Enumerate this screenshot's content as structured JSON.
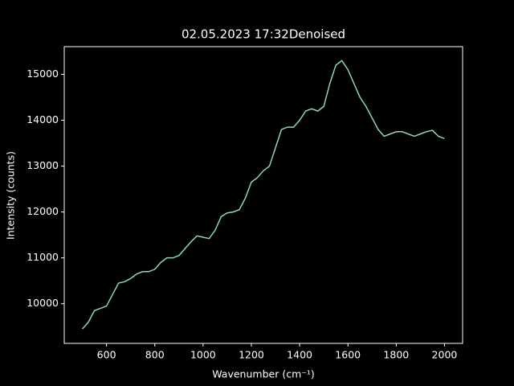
{
  "chart_data": {
    "type": "line",
    "title": "02.05.2023 17:32Denoised",
    "xlabel": "Wavenumber (cm⁻¹)",
    "ylabel": "Intensity (counts)",
    "x": [
      500,
      525,
      550,
      575,
      600,
      625,
      650,
      675,
      700,
      725,
      750,
      775,
      800,
      825,
      850,
      875,
      900,
      925,
      950,
      975,
      1000,
      1025,
      1050,
      1075,
      1100,
      1125,
      1150,
      1175,
      1200,
      1225,
      1250,
      1275,
      1300,
      1325,
      1350,
      1375,
      1400,
      1425,
      1450,
      1475,
      1500,
      1525,
      1550,
      1575,
      1600,
      1625,
      1650,
      1675,
      1700,
      1725,
      1750,
      1775,
      1800,
      1825,
      1850,
      1875,
      1900,
      1925,
      1950,
      1975,
      2000
    ],
    "series": [
      {
        "name": "Denoised",
        "color": "#8dd3c7",
        "values": [
          9450,
          9600,
          9850,
          9900,
          9950,
          10200,
          10450,
          10480,
          10550,
          10650,
          10700,
          10700,
          10750,
          10900,
          11000,
          11000,
          11050,
          11200,
          11350,
          11480,
          11450,
          11420,
          11600,
          11900,
          11980,
          12000,
          12050,
          12300,
          12650,
          12750,
          12900,
          13000,
          13400,
          13800,
          13850,
          13850,
          14000,
          14200,
          14250,
          14200,
          14300,
          14800,
          15200,
          15300,
          15100,
          14800,
          14500,
          14300,
          14050,
          13800,
          13650,
          13700,
          13750,
          13750,
          13700,
          13650,
          13700,
          13750,
          13780,
          13650,
          13600
        ]
      }
    ],
    "xlim": [
      425,
      2075
    ],
    "ylim": [
      9136,
      15604
    ],
    "xticks": [
      600,
      800,
      1000,
      1200,
      1400,
      1600,
      1800,
      2000
    ],
    "yticks": [
      10000,
      11000,
      12000,
      13000,
      14000,
      15000
    ]
  }
}
